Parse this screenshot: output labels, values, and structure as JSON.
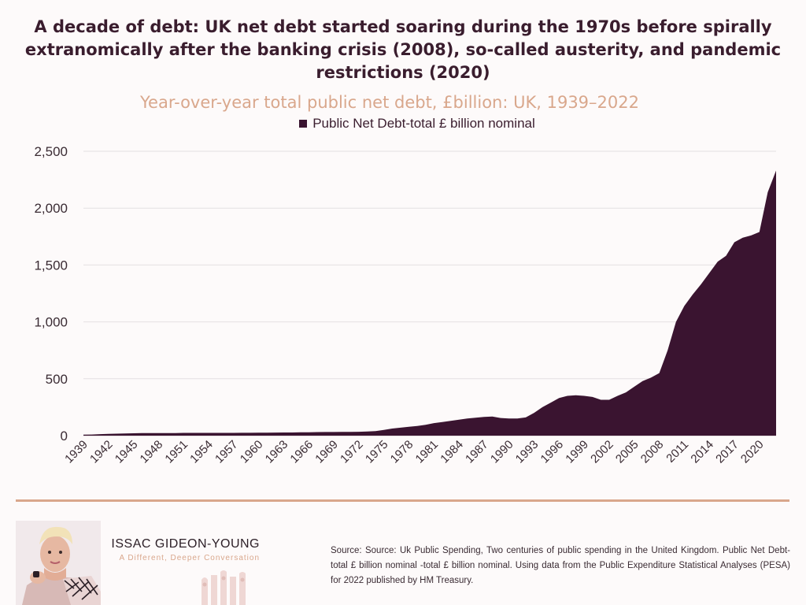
{
  "headline": "A decade of debt: UK net debt started soaring during the 1970s before spirally extranomically after the banking crisis (2008), so-called austerity, and pandemic restrictions (2020)",
  "subtitle": "Year-over-year total public net debt, £billion: UK, 1939–2022",
  "legend_label": "Public Net Debt-total £ billion nominal",
  "brand": {
    "name": "ISSAC GIDEON-YOUNG",
    "tagline": "A Different, Deeper Conversation"
  },
  "source_text": "Source: Source: Uk Public Spending, Two centuries of public spending in the United Kingdom. Public Net Debt-total £ billion nominal -total £ billion nominal. Using data from the Public Expenditure Statistical Analyses (PESA) for 2022 published by HM Treasury.",
  "colors": {
    "area": "#3a1430",
    "headline": "#3a1d2e",
    "accent": "#d9a78c"
  },
  "chart_data": {
    "type": "area",
    "title": "Year-over-year total public net debt, £billion: UK, 1939–2022",
    "xlabel": "",
    "ylabel": "",
    "ylim": [
      0,
      2500
    ],
    "yticks": [
      0,
      500,
      1000,
      1500,
      2000,
      2500
    ],
    "ytick_labels": [
      "0",
      "500",
      "1,000",
      "1,500",
      "2,000",
      "2,500"
    ],
    "xtick_labels": [
      "1939",
      "1942",
      "1945",
      "1948",
      "1951",
      "1954",
      "1957",
      "1960",
      "1963",
      "1966",
      "1969",
      "1972",
      "1975",
      "1978",
      "1981",
      "1984",
      "1987",
      "1990",
      "1993",
      "1996",
      "1999",
      "2002",
      "2005",
      "2008",
      "2011",
      "2014",
      "2017",
      "2020"
    ],
    "grid": true,
    "legend": "top-center",
    "x": [
      1939,
      1940,
      1941,
      1942,
      1943,
      1944,
      1945,
      1946,
      1947,
      1948,
      1949,
      1950,
      1951,
      1952,
      1953,
      1954,
      1955,
      1956,
      1957,
      1958,
      1959,
      1960,
      1961,
      1962,
      1963,
      1964,
      1965,
      1966,
      1967,
      1968,
      1969,
      1970,
      1971,
      1972,
      1973,
      1974,
      1975,
      1976,
      1977,
      1978,
      1979,
      1980,
      1981,
      1982,
      1983,
      1984,
      1985,
      1986,
      1987,
      1988,
      1989,
      1990,
      1991,
      1992,
      1993,
      1994,
      1995,
      1996,
      1997,
      1998,
      1999,
      2000,
      2001,
      2002,
      2003,
      2004,
      2005,
      2006,
      2007,
      2008,
      2009,
      2010,
      2011,
      2012,
      2013,
      2014,
      2015,
      2016,
      2017,
      2018,
      2019,
      2020,
      2021,
      2022
    ],
    "series": [
      {
        "name": "Public Net Debt-total £ billion nominal",
        "values": [
          8,
          10,
          13,
          15,
          17,
          19,
          21,
          22,
          23,
          23,
          23,
          23,
          24,
          24,
          24,
          24,
          24,
          24,
          24,
          25,
          25,
          26,
          26,
          27,
          28,
          28,
          29,
          30,
          31,
          32,
          32,
          33,
          33,
          34,
          36,
          40,
          50,
          62,
          70,
          78,
          85,
          95,
          110,
          120,
          130,
          140,
          150,
          158,
          165,
          168,
          155,
          150,
          150,
          160,
          200,
          250,
          290,
          330,
          350,
          355,
          350,
          340,
          315,
          315,
          350,
          380,
          430,
          480,
          510,
          550,
          750,
          1000,
          1140,
          1240,
          1330,
          1430,
          1530,
          1580,
          1700,
          1740,
          1760,
          1790,
          2140,
          2330
        ]
      }
    ]
  }
}
